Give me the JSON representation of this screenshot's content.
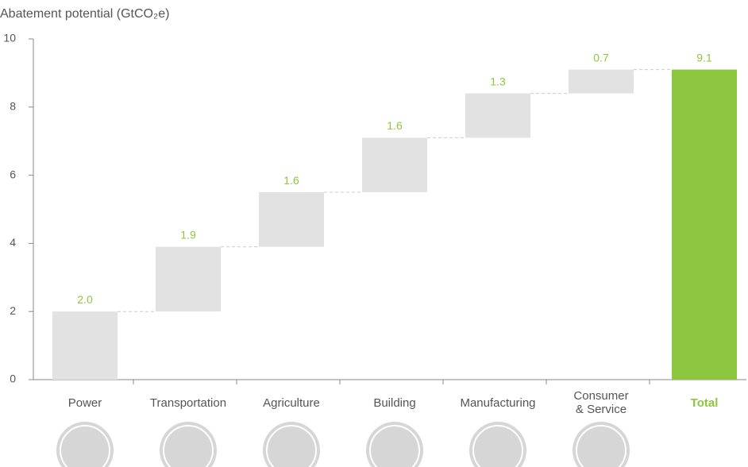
{
  "chart_data": {
    "type": "waterfall",
    "title": "Abatement potential (GtCO₂e)",
    "categories": [
      "Power",
      "Transportation",
      "Agriculture",
      "Building",
      "Manufacturing",
      "Consumer\n& Service",
      "Total"
    ],
    "values": [
      2.0,
      1.9,
      1.6,
      1.6,
      1.3,
      0.7,
      9.1
    ],
    "value_labels": [
      "2.0",
      "1.9",
      "1.6",
      "1.6",
      "1.3",
      "0.7",
      "9.1"
    ],
    "measure": [
      "relative",
      "relative",
      "relative",
      "relative",
      "relative",
      "relative",
      "total"
    ],
    "colors": [
      "#e2e2e2",
      "#e2e2e2",
      "#e2e2e2",
      "#e2e2e2",
      "#e2e2e2",
      "#e2e2e2",
      "#8cc63f"
    ],
    "label_color": "#8cc63f",
    "ylim": [
      0,
      10
    ],
    "yticks": [
      0,
      2,
      4,
      6,
      8,
      10
    ]
  }
}
